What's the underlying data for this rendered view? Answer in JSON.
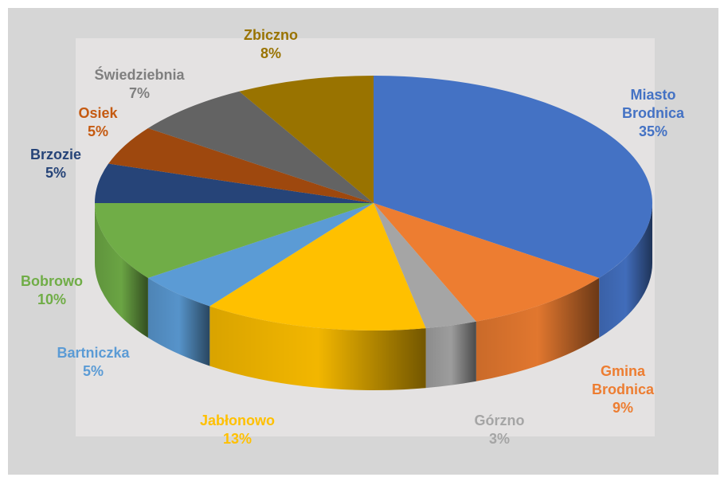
{
  "chart_data": {
    "type": "pie3d",
    "categories": [
      "Miasto Brodnica",
      "Gmina Brodnica",
      "Górzno",
      "Jabłonowo",
      "Bartniczka",
      "Bobrowo",
      "Brzozie",
      "Osiek",
      "Świedziebnia",
      "Zbiczno"
    ],
    "values": [
      35,
      9,
      3,
      13,
      5,
      10,
      5,
      5,
      7,
      8
    ],
    "value_labels": [
      "35%",
      "9%",
      "3%",
      "13%",
      "5%",
      "10%",
      "5%",
      "5%",
      "7%",
      "8%"
    ],
    "colors": [
      "#4472c4",
      "#ed7d31",
      "#a5a5a5",
      "#ffc000",
      "#5b9bd5",
      "#70ad47",
      "#264478",
      "#9e480e",
      "#636363",
      "#997300"
    ]
  }
}
